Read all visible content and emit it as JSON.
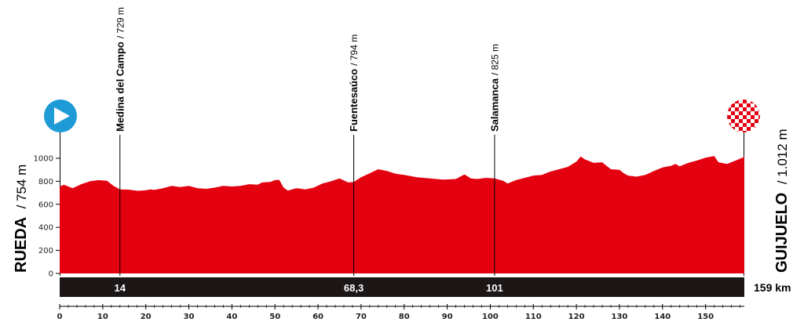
{
  "stage": {
    "start": {
      "name": "RUEDA",
      "altitude": "/ 754 m"
    },
    "finish": {
      "name": "GUIJUELO",
      "altitude": "/ 1.012 m"
    },
    "total_distance_label": "159 km",
    "colors": {
      "profile_fill": "#e3000f",
      "km_bar": "#1c1616",
      "start_icon": "#1e9ad6"
    },
    "icons": {
      "start": "play-icon",
      "finish": "checkered-flag-icon"
    },
    "waypoints": [
      {
        "name": "Medina del Campo",
        "altitude_label": "/ 729 m",
        "km": 14,
        "km_label": "14"
      },
      {
        "name": "Fuentesaúco",
        "altitude_label": "/ 794 m",
        "km": 68.3,
        "km_label": "68,3"
      },
      {
        "name": "Salamanca",
        "altitude_label": "/ 825 m",
        "km": 101,
        "km_label": "101"
      }
    ]
  },
  "chart_data": {
    "type": "area",
    "title": "",
    "xlabel": "",
    "ylabel": "",
    "xlim": [
      0,
      160
    ],
    "ylim": [
      0,
      1000
    ],
    "xticks": [
      0,
      10,
      20,
      30,
      40,
      50,
      60,
      70,
      80,
      90,
      100,
      110,
      120,
      130,
      140,
      150
    ],
    "yticks": [
      0,
      200,
      400,
      600,
      800,
      1000
    ],
    "ytick_labels": [
      "0",
      "200",
      "400",
      "600",
      "800",
      "1000"
    ],
    "grid": false,
    "series": [
      {
        "x": [
          0,
          1,
          3,
          5,
          7,
          9,
          11,
          12.5,
          14,
          16,
          18,
          19,
          20,
          21,
          22,
          24,
          26,
          28,
          30,
          32,
          34,
          36,
          38,
          40,
          42,
          44,
          46,
          47,
          49,
          50,
          51,
          52,
          53,
          55,
          57,
          59,
          61,
          63,
          65,
          67,
          68.3,
          70,
          72,
          74,
          76,
          78,
          80,
          83,
          86,
          89,
          92,
          94,
          95.5,
          97,
          99,
          101,
          103,
          104,
          106,
          108,
          110,
          112,
          114,
          116,
          118,
          120,
          121,
          122,
          124,
          126,
          127,
          128,
          130,
          131,
          132,
          134,
          136,
          138,
          140,
          142,
          143,
          144,
          146,
          148,
          150,
          152,
          153,
          155,
          157,
          159
        ],
        "y": [
          754,
          770,
          740,
          775,
          800,
          810,
          805,
          760,
          729,
          728,
          718,
          720,
          722,
          730,
          725,
          740,
          760,
          750,
          760,
          740,
          735,
          745,
          760,
          755,
          760,
          775,
          770,
          790,
          795,
          810,
          812,
          745,
          720,
          740,
          730,
          745,
          780,
          800,
          825,
          790,
          794,
          835,
          870,
          905,
          890,
          865,
          855,
          835,
          825,
          815,
          820,
          860,
          825,
          820,
          830,
          825,
          805,
          780,
          810,
          830,
          850,
          855,
          885,
          905,
          925,
          970,
          1015,
          990,
          960,
          965,
          935,
          905,
          900,
          870,
          850,
          840,
          855,
          890,
          920,
          935,
          950,
          930,
          960,
          980,
          1005,
          1020,
          965,
          950,
          980,
          1012
        ]
      }
    ]
  }
}
